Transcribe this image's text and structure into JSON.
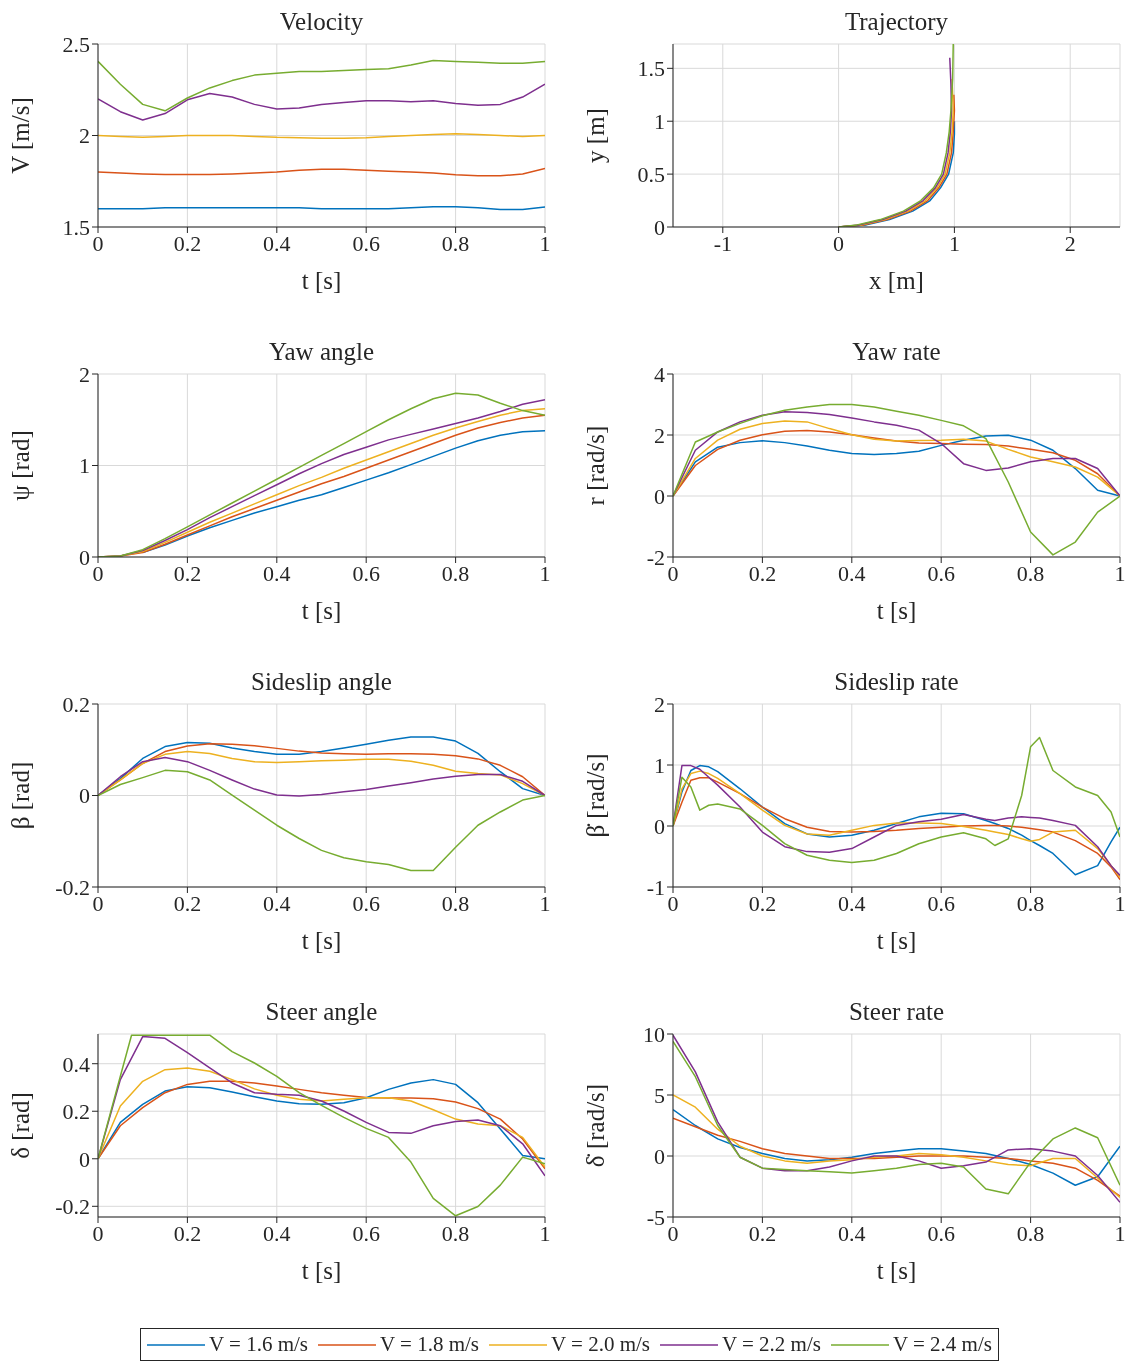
{
  "chart_data": [
    {
      "type": "line",
      "title": "Velocity",
      "xlabel": "t [s]",
      "ylabel": "V [m/s]",
      "xlim": [
        0,
        1
      ],
      "xticks": [
        0,
        0.2,
        0.4,
        0.6,
        0.8,
        1
      ],
      "ylim": [
        1.5,
        2.5
      ],
      "yticks": [
        1.5,
        2,
        2.5
      ],
      "grid": true,
      "x": [
        0,
        0.05,
        0.1,
        0.15,
        0.2,
        0.25,
        0.3,
        0.35,
        0.4,
        0.45,
        0.5,
        0.55,
        0.6,
        0.65,
        0.7,
        0.75,
        0.8,
        0.85,
        0.9,
        0.95,
        1
      ],
      "series": [
        {
          "color": "#0072bd",
          "values": [
            1.6,
            1.6,
            1.6,
            1.605,
            1.605,
            1.605,
            1.605,
            1.605,
            1.605,
            1.605,
            1.6,
            1.6,
            1.6,
            1.6,
            1.605,
            1.61,
            1.61,
            1.605,
            1.595,
            1.595,
            1.61
          ]
        },
        {
          "color": "#d95319",
          "values": [
            1.8,
            1.795,
            1.79,
            1.787,
            1.787,
            1.787,
            1.79,
            1.795,
            1.8,
            1.81,
            1.815,
            1.815,
            1.81,
            1.805,
            1.8,
            1.795,
            1.785,
            1.78,
            1.78,
            1.79,
            1.82
          ]
        },
        {
          "color": "#edb120",
          "values": [
            2.0,
            1.995,
            1.99,
            1.995,
            2.0,
            2.0,
            2.0,
            1.995,
            1.99,
            1.988,
            1.985,
            1.985,
            1.988,
            1.995,
            2.0,
            2.005,
            2.01,
            2.005,
            2.0,
            1.995,
            2.0
          ]
        },
        {
          "color": "#7e2f8e",
          "values": [
            2.2,
            2.13,
            2.085,
            2.12,
            2.195,
            2.23,
            2.21,
            2.17,
            2.145,
            2.15,
            2.17,
            2.18,
            2.19,
            2.19,
            2.185,
            2.19,
            2.175,
            2.165,
            2.17,
            2.21,
            2.28
          ]
        },
        {
          "color": "#77ac30",
          "values": [
            2.405,
            2.28,
            2.17,
            2.135,
            2.205,
            2.26,
            2.3,
            2.33,
            2.34,
            2.35,
            2.35,
            2.355,
            2.36,
            2.365,
            2.385,
            2.41,
            2.405,
            2.4,
            2.395,
            2.395,
            2.405
          ]
        }
      ]
    },
    {
      "type": "line",
      "title": "Trajectory",
      "xlabel": "x [m]",
      "ylabel": "y [m]",
      "xlim": [
        -1.43,
        2.43
      ],
      "xticks": [
        -1,
        0,
        1,
        2
      ],
      "ylim": [
        0,
        1.73
      ],
      "yticks": [
        0,
        0.5,
        1,
        1.5
      ],
      "grid": true,
      "series": [
        {
          "color": "#0072bd",
          "x": [
            0,
            0.24,
            0.44,
            0.64,
            0.79,
            0.88,
            0.95,
            0.99,
            1.0,
            1.0
          ],
          "values": [
            0,
            0.02,
            0.07,
            0.15,
            0.25,
            0.37,
            0.5,
            0.7,
            0.88,
            1.0
          ]
        },
        {
          "color": "#d95319",
          "x": [
            0,
            0.22,
            0.42,
            0.62,
            0.77,
            0.865,
            0.935,
            0.975,
            0.99,
            1.0,
            0.995
          ],
          "values": [
            0,
            0.02,
            0.07,
            0.15,
            0.25,
            0.37,
            0.5,
            0.7,
            0.9,
            1.1,
            1.25
          ]
        },
        {
          "color": "#edb120",
          "x": [
            0,
            0.2,
            0.4,
            0.6,
            0.75,
            0.85,
            0.92,
            0.96,
            0.98,
            0.99,
            0.98
          ],
          "values": [
            0,
            0.02,
            0.07,
            0.15,
            0.25,
            0.37,
            0.5,
            0.7,
            0.9,
            1.1,
            1.4
          ]
        },
        {
          "color": "#7e2f8e",
          "x": [
            0,
            0.18,
            0.38,
            0.58,
            0.73,
            0.835,
            0.905,
            0.945,
            0.965,
            0.975,
            0.97,
            0.96
          ],
          "values": [
            0,
            0.02,
            0.07,
            0.15,
            0.25,
            0.37,
            0.5,
            0.7,
            0.9,
            1.1,
            1.35,
            1.6
          ]
        },
        {
          "color": "#77ac30",
          "x": [
            0,
            0.16,
            0.36,
            0.56,
            0.71,
            0.82,
            0.89,
            0.93,
            0.955,
            0.97,
            0.985,
            0.99
          ],
          "values": [
            0,
            0.02,
            0.07,
            0.15,
            0.25,
            0.37,
            0.5,
            0.7,
            0.9,
            1.1,
            1.4,
            1.73
          ]
        }
      ]
    },
    {
      "type": "line",
      "title": "Yaw angle",
      "xlabel": "t [s]",
      "ylabel": "ψ [rad]",
      "xlim": [
        0,
        1
      ],
      "xticks": [
        0,
        0.2,
        0.4,
        0.6,
        0.8,
        1
      ],
      "ylim": [
        0,
        2
      ],
      "yticks": [
        0,
        1,
        2
      ],
      "grid": true,
      "x": [
        0,
        0.05,
        0.1,
        0.15,
        0.2,
        0.25,
        0.3,
        0.35,
        0.4,
        0.45,
        0.5,
        0.55,
        0.6,
        0.65,
        0.7,
        0.75,
        0.8,
        0.85,
        0.9,
        0.95,
        1
      ],
      "series": [
        {
          "color": "#0072bd",
          "values": [
            null,
            null,
            0.05,
            0.13,
            0.23,
            0.32,
            0.4,
            0.48,
            0.55,
            0.62,
            0.68,
            0.76,
            0.84,
            0.92,
            1.01,
            1.1,
            1.19,
            1.27,
            1.33,
            1.37,
            1.38
          ]
        },
        {
          "color": "#d95319",
          "values": [
            0,
            0.01,
            0.05,
            0.14,
            0.24,
            0.34,
            0.44,
            0.53,
            0.62,
            0.71,
            0.8,
            0.88,
            0.97,
            1.06,
            1.15,
            1.24,
            1.33,
            1.41,
            1.47,
            1.52,
            1.55
          ]
        },
        {
          "color": "#edb120",
          "values": [
            0,
            0.01,
            0.06,
            0.16,
            0.27,
            0.38,
            0.48,
            0.58,
            0.68,
            0.78,
            0.87,
            0.97,
            1.06,
            1.15,
            1.24,
            1.33,
            1.41,
            1.48,
            1.55,
            1.6,
            1.62
          ]
        },
        {
          "color": "#7e2f8e",
          "values": [
            0,
            0.01,
            0.07,
            0.18,
            0.3,
            0.43,
            0.55,
            0.67,
            0.79,
            0.91,
            1.02,
            1.12,
            1.2,
            1.28,
            1.34,
            1.4,
            1.46,
            1.52,
            1.59,
            1.67,
            1.72
          ]
        },
        {
          "color": "#77ac30",
          "values": [
            0,
            0.01,
            0.08,
            0.2,
            0.33,
            0.46,
            0.59,
            0.72,
            0.85,
            0.98,
            1.11,
            1.24,
            1.37,
            1.5,
            1.62,
            1.73,
            1.79,
            1.77,
            1.68,
            1.6,
            1.55
          ]
        }
      ]
    },
    {
      "type": "line",
      "title": "Yaw rate",
      "xlabel": "t [s]",
      "ylabel": "r [rad/s]",
      "xlim": [
        0,
        1
      ],
      "xticks": [
        0,
        0.2,
        0.4,
        0.6,
        0.8,
        1
      ],
      "ylim": [
        -2,
        4
      ],
      "yticks": [
        -2,
        0,
        2,
        4
      ],
      "grid": true,
      "x": [
        0,
        0.05,
        0.1,
        0.15,
        0.2,
        0.25,
        0.3,
        0.35,
        0.4,
        0.45,
        0.5,
        0.55,
        0.6,
        0.65,
        0.7,
        0.75,
        0.8,
        0.85,
        0.9,
        0.95,
        1
      ],
      "series": [
        {
          "color": "#0072bd",
          "values": [
            0,
            1.12,
            1.6,
            1.75,
            1.81,
            1.75,
            1.64,
            1.5,
            1.39,
            1.36,
            1.39,
            1.47,
            1.66,
            1.83,
            1.97,
            1.99,
            1.83,
            1.5,
            0.9,
            0.19,
            0
          ]
        },
        {
          "color": "#d95319",
          "values": [
            0,
            1.0,
            1.53,
            1.83,
            2.01,
            2.12,
            2.15,
            2.1,
            2.01,
            1.9,
            1.8,
            1.74,
            1.72,
            1.7,
            1.69,
            1.64,
            1.53,
            1.42,
            1.17,
            0.73,
            0
          ]
        },
        {
          "color": "#edb120",
          "values": [
            0,
            1.23,
            1.83,
            2.19,
            2.38,
            2.46,
            2.43,
            2.21,
            2.01,
            1.86,
            1.8,
            1.82,
            1.83,
            1.86,
            1.8,
            1.53,
            1.28,
            1.12,
            0.95,
            0.62,
            0
          ]
        },
        {
          "color": "#7e2f8e",
          "values": [
            0,
            1.5,
            2.1,
            2.43,
            2.65,
            2.76,
            2.74,
            2.67,
            2.56,
            2.43,
            2.32,
            2.16,
            1.72,
            1.06,
            0.84,
            0.92,
            1.12,
            1.23,
            1.23,
            0.9,
            0
          ]
        },
        {
          "color": "#77ac30",
          "values": [
            0,
            1.77,
            2.1,
            2.38,
            2.63,
            2.81,
            2.92,
            3.0,
            3.0,
            2.92,
            2.78,
            2.65,
            2.48,
            2.3,
            1.88,
            0.46,
            -1.18,
            -1.93,
            -1.51,
            -0.53,
            0
          ]
        }
      ]
    },
    {
      "type": "line",
      "title": "Sideslip angle",
      "xlabel": "t [s]",
      "ylabel": "β [rad]",
      "xlim": [
        0,
        1
      ],
      "xticks": [
        0,
        0.2,
        0.4,
        0.6,
        0.8,
        1
      ],
      "ylim": [
        -0.2,
        0.2
      ],
      "yticks": [
        -0.2,
        0,
        0.2
      ],
      "grid": true,
      "x": [
        0,
        0.05,
        0.1,
        0.15,
        0.2,
        0.25,
        0.3,
        0.35,
        0.4,
        0.45,
        0.5,
        0.55,
        0.6,
        0.65,
        0.7,
        0.75,
        0.8,
        0.85,
        0.9,
        0.95,
        1
      ],
      "series": [
        {
          "color": "#0072bd",
          "values": [
            0,
            0.037,
            0.081,
            0.107,
            0.116,
            0.114,
            0.104,
            0.096,
            0.09,
            0.09,
            0.096,
            0.104,
            0.112,
            0.121,
            0.128,
            0.128,
            0.119,
            0.092,
            0.052,
            0.015,
            0
          ]
        },
        {
          "color": "#d95319",
          "values": [
            0,
            0.034,
            0.07,
            0.096,
            0.108,
            0.113,
            0.112,
            0.109,
            0.103,
            0.097,
            0.093,
            0.091,
            0.09,
            0.091,
            0.091,
            0.09,
            0.087,
            0.08,
            0.066,
            0.041,
            0
          ]
        },
        {
          "color": "#edb120",
          "values": [
            0,
            0.034,
            0.07,
            0.09,
            0.096,
            0.092,
            0.081,
            0.074,
            0.072,
            0.074,
            0.076,
            0.077,
            0.079,
            0.079,
            0.075,
            0.066,
            0.053,
            0.048,
            0.045,
            0.026,
            0
          ]
        },
        {
          "color": "#7e2f8e",
          "values": [
            0,
            0.041,
            0.074,
            0.083,
            0.074,
            0.055,
            0.034,
            0.014,
            0.001,
            -0.001,
            0.002,
            0.008,
            0.013,
            0.021,
            0.028,
            0.036,
            0.042,
            0.046,
            0.046,
            0.031,
            0
          ]
        },
        {
          "color": "#77ac30",
          "values": [
            0,
            0.024,
            0.039,
            0.055,
            0.052,
            0.034,
            0.001,
            -0.032,
            -0.065,
            -0.094,
            -0.12,
            -0.136,
            -0.145,
            -0.151,
            -0.164,
            -0.164,
            -0.113,
            -0.065,
            -0.036,
            -0.01,
            0
          ]
        }
      ]
    },
    {
      "type": "line",
      "title": "Sideslip rate",
      "xlabel": "t [s]",
      "ylabel": "β̇ [rad/s]",
      "xlim": [
        0,
        1
      ],
      "xticks": [
        0,
        0.2,
        0.4,
        0.6,
        0.8,
        1
      ],
      "ylim": [
        -1,
        2
      ],
      "yticks": [
        -1,
        0,
        1,
        2
      ],
      "grid": true,
      "x": [
        0,
        0.02,
        0.04,
        0.06,
        0.08,
        0.1,
        0.15,
        0.2,
        0.25,
        0.3,
        0.35,
        0.4,
        0.45,
        0.5,
        0.55,
        0.6,
        0.65,
        0.7,
        0.72,
        0.75,
        0.78,
        0.8,
        0.82,
        0.85,
        0.9,
        0.95,
        0.98,
        1
      ],
      "series": [
        {
          "color": "#0072bd",
          "values": [
            0,
            0.56,
            0.91,
            0.99,
            0.97,
            0.89,
            0.61,
            0.31,
            0.04,
            -0.13,
            -0.18,
            -0.15,
            -0.07,
            0.04,
            0.15,
            0.21,
            0.2,
            0.09,
            0.04,
            -0.04,
            -0.15,
            -0.24,
            -0.32,
            -0.45,
            -0.8,
            -0.65,
            -0.26,
            -0.02
          ]
        },
        {
          "color": "#d95319",
          "values": [
            0,
            0.39,
            0.75,
            0.79,
            0.79,
            0.72,
            0.53,
            0.31,
            0.12,
            -0.02,
            -0.09,
            -0.1,
            -0.09,
            -0.07,
            -0.04,
            -0.02,
            0,
            0.01,
            0.01,
            0,
            -0.02,
            -0.04,
            -0.06,
            -0.1,
            -0.24,
            -0.45,
            -0.67,
            -0.88
          ]
        },
        {
          "color": "#edb120",
          "values": [
            0,
            0.61,
            0.86,
            0.9,
            0.86,
            0.78,
            0.53,
            0.26,
            0.01,
            -0.13,
            -0.15,
            -0.07,
            0.01,
            0.05,
            0.05,
            0.04,
            -0.01,
            -0.07,
            -0.1,
            -0.14,
            -0.21,
            -0.25,
            -0.22,
            -0.1,
            -0.07,
            -0.37,
            -0.65,
            -0.84
          ]
        },
        {
          "color": "#7e2f8e",
          "values": [
            0,
            0.99,
            0.99,
            0.93,
            0.8,
            0.67,
            0.31,
            -0.1,
            -0.34,
            -0.42,
            -0.43,
            -0.37,
            -0.18,
            0.01,
            0.07,
            0.11,
            0.19,
            0.11,
            0.09,
            0.13,
            0.15,
            0.14,
            0.13,
            0.09,
            0.01,
            -0.34,
            -0.65,
            -0.81
          ]
        },
        {
          "color": "#77ac30",
          "values": [
            0,
            0.8,
            0.64,
            0.26,
            0.34,
            0.36,
            0.28,
            0.01,
            -0.29,
            -0.48,
            -0.56,
            -0.6,
            -0.56,
            -0.45,
            -0.29,
            -0.18,
            -0.11,
            -0.21,
            -0.32,
            -0.21,
            0.5,
            1.3,
            1.45,
            0.91,
            0.64,
            0.5,
            0.23,
            -0.18
          ]
        }
      ]
    },
    {
      "type": "line",
      "title": "Steer angle",
      "xlabel": "t [s]",
      "ylabel": "δ [rad]",
      "xlim": [
        0,
        1
      ],
      "xticks": [
        0,
        0.2,
        0.4,
        0.6,
        0.8,
        1
      ],
      "ylim": [
        -0.245,
        0.525
      ],
      "yticks": [
        -0.2,
        0,
        0.2,
        0.4
      ],
      "grid": true,
      "x": [
        0,
        0.05,
        0.1,
        0.15,
        0.2,
        0.25,
        0.3,
        0.35,
        0.4,
        0.45,
        0.5,
        0.55,
        0.6,
        0.65,
        0.7,
        0.75,
        0.8,
        0.85,
        0.9,
        0.95,
        1
      ],
      "series": [
        {
          "color": "#0072bd",
          "values": [
            0,
            0.153,
            0.229,
            0.285,
            0.303,
            0.299,
            0.281,
            0.261,
            0.243,
            0.232,
            0.229,
            0.236,
            0.257,
            0.292,
            0.319,
            0.333,
            0.313,
            0.236,
            0.125,
            0.014,
            0
          ]
        },
        {
          "color": "#d95319",
          "values": [
            0,
            0.139,
            0.215,
            0.278,
            0.313,
            0.326,
            0.326,
            0.319,
            0.306,
            0.292,
            0.278,
            0.267,
            0.258,
            0.256,
            0.256,
            0.253,
            0.239,
            0.211,
            0.167,
            0.083,
            -0.042
          ]
        },
        {
          "color": "#edb120",
          "values": [
            0,
            0.222,
            0.326,
            0.375,
            0.382,
            0.368,
            0.333,
            0.294,
            0.267,
            0.25,
            0.243,
            0.25,
            0.257,
            0.257,
            0.243,
            0.206,
            0.167,
            0.146,
            0.139,
            0.09,
            -0.035
          ]
        },
        {
          "color": "#7e2f8e",
          "values": [
            0,
            0.333,
            0.514,
            0.507,
            0.447,
            0.382,
            0.319,
            0.278,
            0.271,
            0.267,
            0.243,
            0.201,
            0.153,
            0.111,
            0.107,
            0.139,
            0.157,
            0.163,
            0.139,
            0.063,
            -0.072
          ]
        },
        {
          "color": "#77ac30",
          "x": [
            0,
            0.05,
            0.075,
            0.1,
            0.15,
            0.2,
            0.25,
            0.3,
            0.35,
            0.4,
            0.45,
            0.5,
            0.55,
            0.6,
            0.65,
            0.7,
            0.75,
            0.8,
            0.85,
            0.9,
            0.95,
            1
          ],
          "values": [
            0,
            0.347,
            0.52,
            0.52,
            0.52,
            0.52,
            0.52,
            0.451,
            0.403,
            0.347,
            0.278,
            0.225,
            0.174,
            0.128,
            0.09,
            -0.014,
            -0.167,
            -0.24,
            -0.201,
            -0.111,
            0.007,
            -0.021
          ]
        }
      ]
    },
    {
      "type": "line",
      "title": "Steer rate",
      "xlabel": "t [s]",
      "ylabel": "δ̇ [rad/s]",
      "xlim": [
        0,
        1
      ],
      "xticks": [
        0,
        0.2,
        0.4,
        0.6,
        0.8,
        1
      ],
      "ylim": [
        -5,
        10
      ],
      "yticks": [
        -5,
        0,
        5,
        10
      ],
      "grid": true,
      "legend": "bottom",
      "x": [
        0,
        0.05,
        0.1,
        0.15,
        0.2,
        0.25,
        0.3,
        0.35,
        0.4,
        0.45,
        0.5,
        0.55,
        0.6,
        0.65,
        0.7,
        0.75,
        0.8,
        0.85,
        0.9,
        0.95,
        1
      ],
      "series": [
        {
          "name": "V = 1.6 m/s",
          "color": "#0072bd",
          "values": [
            3.8,
            2.5,
            1.4,
            0.7,
            0.2,
            -0.2,
            -0.4,
            -0.3,
            -0.1,
            0.2,
            0.4,
            0.6,
            0.6,
            0.4,
            0.2,
            -0.2,
            -0.7,
            -1.4,
            -2.4,
            -1.7,
            0.8
          ]
        },
        {
          "name": "V = 1.8 m/s",
          "color": "#d95319",
          "values": [
            3.1,
            2.4,
            1.7,
            1.2,
            0.6,
            0.2,
            0,
            -0.2,
            -0.2,
            -0.2,
            -0.1,
            0,
            0,
            0,
            -0.1,
            -0.2,
            -0.4,
            -0.6,
            -1.0,
            -2.0,
            -3.3
          ]
        },
        {
          "name": "V = 2.0 m/s",
          "color": "#edb120",
          "values": [
            5.0,
            4.0,
            2.2,
            0.8,
            0,
            -0.4,
            -0.6,
            -0.4,
            -0.3,
            -0.1,
            0,
            0.2,
            0.1,
            -0.1,
            -0.4,
            -0.7,
            -0.8,
            -0.2,
            -0.2,
            -1.8,
            -3.4
          ]
        },
        {
          "name": "V = 2.2 m/s",
          "color": "#7e2f8e",
          "values": [
            9.9,
            6.9,
            2.8,
            -0.1,
            -1.0,
            -1.2,
            -1.2,
            -0.9,
            -0.4,
            0,
            0,
            -0.4,
            -1.0,
            -0.8,
            -0.5,
            0.5,
            0.6,
            0.4,
            0,
            -1.6,
            -3.8
          ]
        },
        {
          "name": "V = 2.4 m/s",
          "color": "#77ac30",
          "values": [
            9.4,
            6.5,
            2.5,
            -0.1,
            -1.0,
            -1.1,
            -1.2,
            -1.3,
            -1.4,
            -1.2,
            -1.0,
            -0.7,
            -0.6,
            -0.9,
            -2.7,
            -3.1,
            -0.5,
            1.4,
            2.3,
            1.5,
            -2.4
          ]
        }
      ]
    }
  ]
}
